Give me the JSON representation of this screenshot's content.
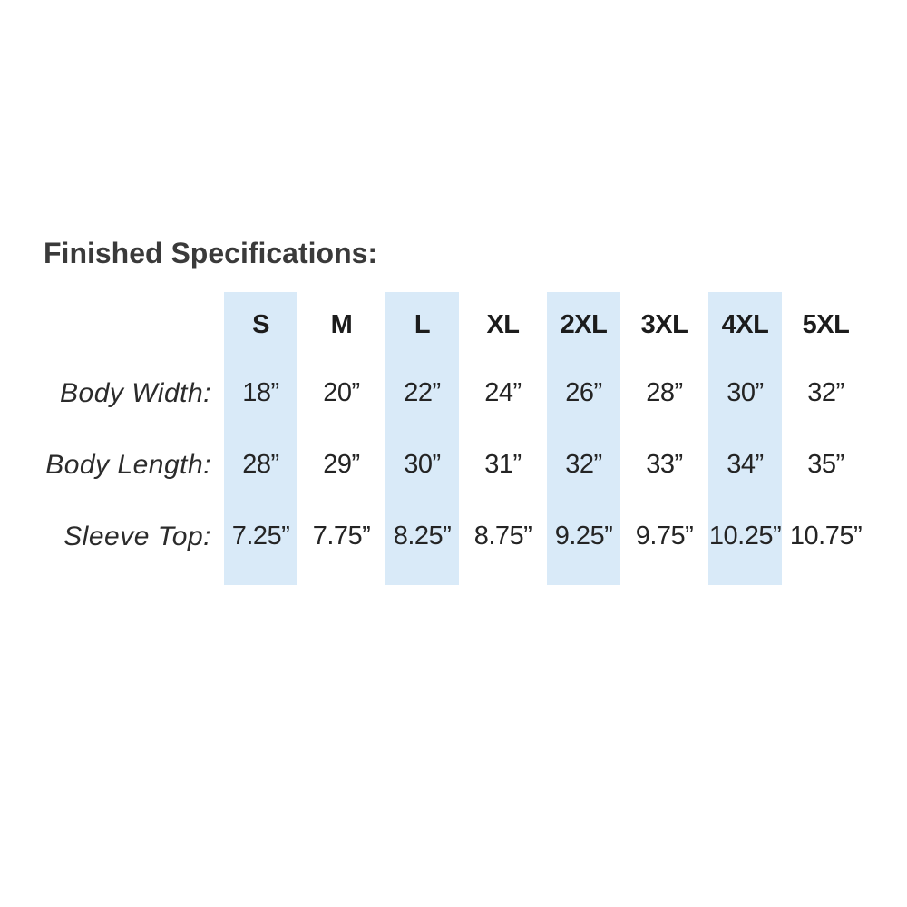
{
  "title": "Finished Specifications:",
  "table": {
    "highlight_color": "#d9eaf8",
    "sizes": [
      "S",
      "M",
      "L",
      "XL",
      "2XL",
      "3XL",
      "4XL",
      "5XL"
    ],
    "highlighted_sizes": [
      "S",
      "L",
      "2XL",
      "4XL"
    ],
    "rows": [
      {
        "label": "Body Width:",
        "values": [
          "18”",
          "20”",
          "22”",
          "24”",
          "26”",
          "28”",
          "30”",
          "32”"
        ]
      },
      {
        "label": "Body Length:",
        "values": [
          "28”",
          "29”",
          "30”",
          "31”",
          "32”",
          "33”",
          "34”",
          "35”"
        ]
      },
      {
        "label": "Sleeve Top:",
        "values": [
          "7.25”",
          "7.75”",
          "8.25”",
          "8.75”",
          "9.25”",
          "9.75”",
          "10.25”",
          "10.75”"
        ]
      }
    ]
  }
}
